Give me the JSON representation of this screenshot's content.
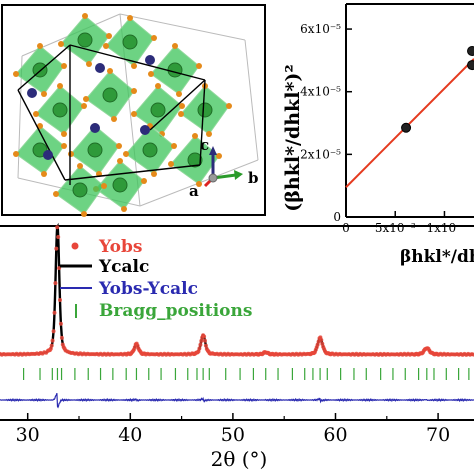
{
  "colors": {
    "yobs": "#e8463a",
    "ycalc": "#000000",
    "diff": "#2a2ab0",
    "bragg": "#3aa63a",
    "fit": "#e53a1f",
    "octahedra": "#3cc45a",
    "sphere_green": "#2f9a3a",
    "sphere_blue": "#2c2c7a",
    "oxygen": "#e58a1a"
  },
  "structure_inset": {
    "axis_labels": {
      "a": "a",
      "b": "b",
      "c": "c"
    }
  },
  "legend": {
    "yobs": "Yobs",
    "ycalc": "Ycalc",
    "diff": "Yobs-Ycalc",
    "bragg": "Bragg_positions"
  },
  "chart_data": [
    {
      "type": "line",
      "xlabel": "2θ (°)",
      "xlim": [
        27.3,
        73.5
      ],
      "x_ticks": [
        30,
        40,
        50,
        60,
        70
      ],
      "x_tick_labels": [
        "30",
        "40",
        "50",
        "60",
        "70"
      ],
      "ylim": [
        0,
        1.0
      ],
      "background": 0.028,
      "peaks": [
        {
          "x": 32.9,
          "intensity": 1.0,
          "width": 0.22
        },
        {
          "x": 40.6,
          "intensity": 0.081,
          "width": 0.24
        },
        {
          "x": 47.1,
          "intensity": 0.15,
          "width": 0.26
        },
        {
          "x": 53.2,
          "intensity": 0.017,
          "width": 0.25
        },
        {
          "x": 58.5,
          "intensity": 0.13,
          "width": 0.28
        },
        {
          "x": 68.9,
          "intensity": 0.05,
          "width": 0.3
        }
      ],
      "bragg_positions": [
        29.6,
        31.2,
        32.4,
        32.9,
        33.3,
        34.6,
        35.9,
        37.1,
        38.3,
        39.6,
        40.6,
        41.8,
        43.0,
        44.4,
        45.6,
        46.5,
        47.1,
        47.7,
        49.3,
        50.7,
        52.0,
        53.2,
        54.4,
        55.8,
        57.0,
        57.8,
        58.5,
        59.2,
        60.5,
        61.8,
        63.0,
        64.4,
        65.6,
        66.8,
        68.1,
        68.9,
        69.6,
        70.8,
        72.0,
        73.0
      ],
      "series": [
        {
          "name": "Yobs"
        },
        {
          "name": "Ycalc"
        },
        {
          "name": "Yobs-Ycalc"
        },
        {
          "name": "Bragg_positions"
        }
      ]
    },
    {
      "type": "scatter",
      "xlabel": "βhkl*/dhkl*",
      "ylabel": "(βhkl*/dhkl*)²",
      "xlim": [
        0,
        0.013
      ],
      "ylim": [
        0,
        6.8e-05
      ],
      "x_ticks": [
        0,
        0.005,
        0.01
      ],
      "x_tick_labels": [
        "0",
        "5x10⁻³",
        "1x10⁻"
      ],
      "y_ticks": [
        0,
        2e-05,
        4e-05,
        6e-05
      ],
      "y_tick_labels": [
        "0",
        "2x10⁻⁵",
        "4x10⁻⁵",
        "6x10⁻⁵"
      ],
      "points": [
        {
          "x": 0.0061,
          "y": 2.85e-05
        },
        {
          "x": 0.0128,
          "y": 5.3e-05
        },
        {
          "x": 0.0128,
          "y": 4.85e-05
        }
      ],
      "fit_line": {
        "x": [
          0,
          0.013
        ],
        "y": [
          9.5e-06,
          5.05e-05
        ]
      }
    }
  ]
}
